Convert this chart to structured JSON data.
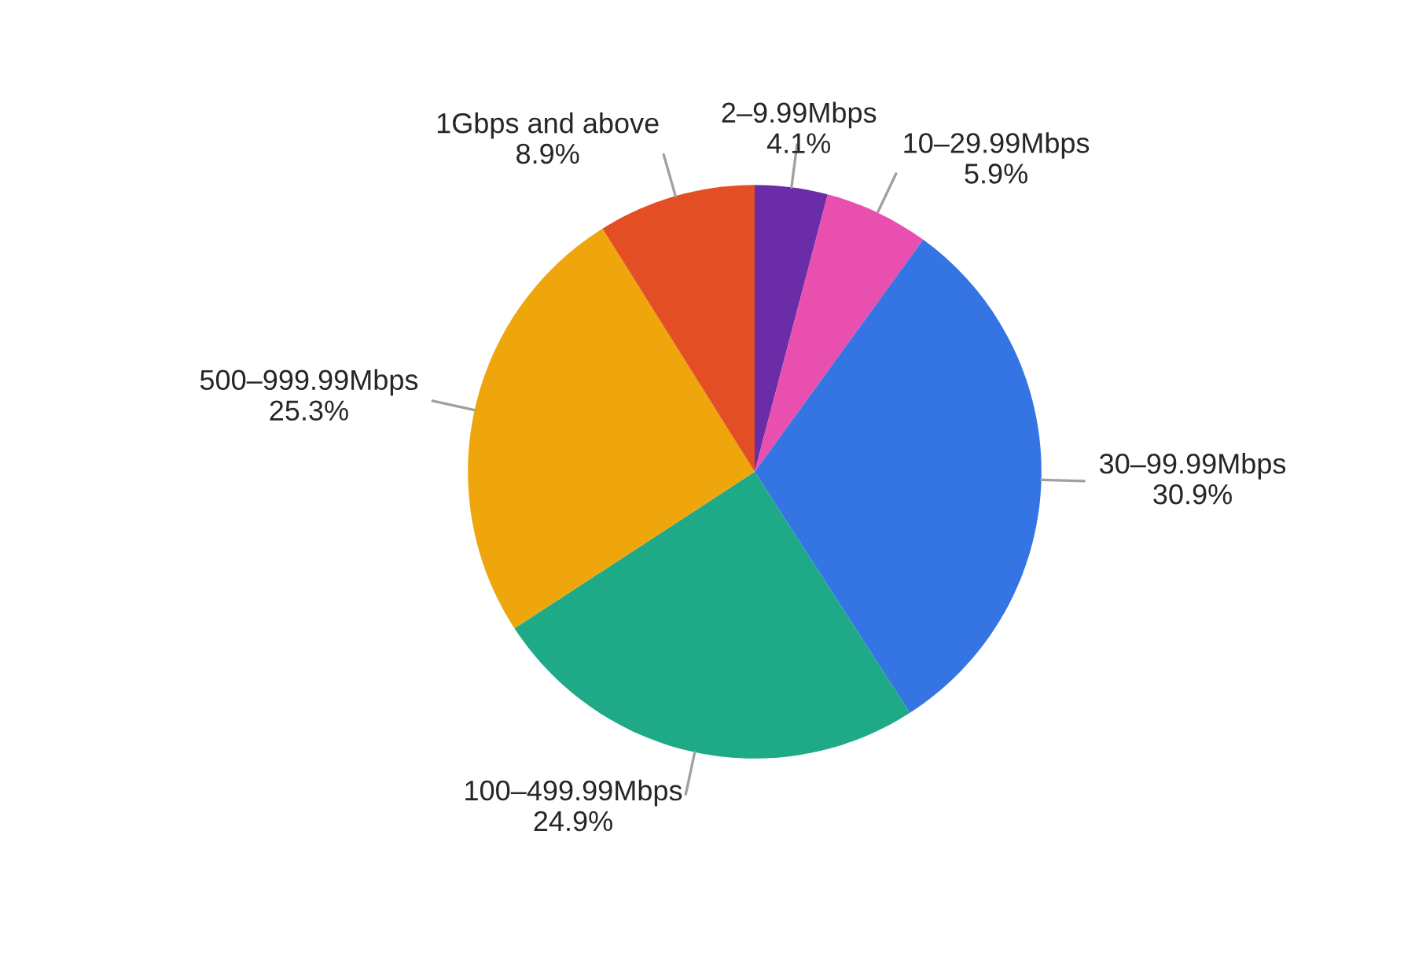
{
  "chart_data": {
    "type": "pie",
    "categories": [
      "2–9.99Mbps",
      "10–29.99Mbps",
      "30–99.99Mbps",
      "100–499.99Mbps",
      "500–999.99Mbps",
      "1Gbps and above"
    ],
    "values": [
      4.1,
      5.9,
      30.9,
      24.9,
      25.3,
      8.9
    ],
    "colors": [
      "#6b2ca8",
      "#e84fae",
      "#3574e3",
      "#1faa87",
      "#eea60c",
      "#e34e24"
    ],
    "value_labels": [
      "4.1%",
      "5.9%",
      "30.9%",
      "24.9%",
      "25.3%",
      "8.9%"
    ],
    "legend": false
  }
}
